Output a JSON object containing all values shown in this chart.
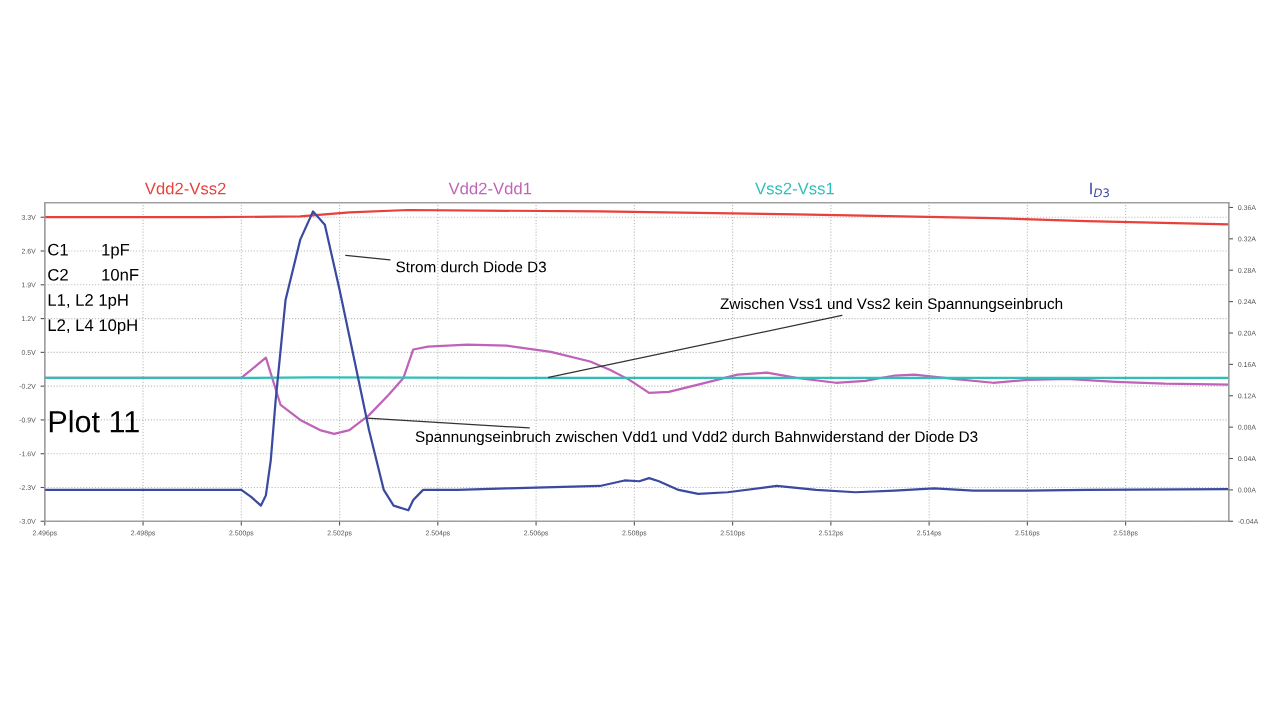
{
  "chart_data": {
    "type": "line",
    "xlim": [
      2.496,
      2.5201
    ],
    "xticks": [
      {
        "value": 2.496,
        "label": "2.496ps"
      },
      {
        "value": 2.498,
        "label": "2.498ps"
      },
      {
        "value": 2.5,
        "label": "2.500ps"
      },
      {
        "value": 2.502,
        "label": "2.502ps"
      },
      {
        "value": 2.504,
        "label": "2.504ps"
      },
      {
        "value": 2.506,
        "label": "2.506ps"
      },
      {
        "value": 2.508,
        "label": "2.508ps"
      },
      {
        "value": 2.51,
        "label": "2.510ps"
      },
      {
        "value": 2.512,
        "label": "2.512ps"
      },
      {
        "value": 2.514,
        "label": "2.514ps"
      },
      {
        "value": 2.516,
        "label": "2.516ps"
      },
      {
        "value": 2.518,
        "label": "2.518ps"
      }
    ],
    "ylim": [
      -3.0,
      3.6
    ],
    "yticks": [
      {
        "value": 3.3,
        "label": "3.3V"
      },
      {
        "value": 2.6,
        "label": "2.6V"
      },
      {
        "value": 1.9,
        "label": "1.9V"
      },
      {
        "value": 1.2,
        "label": "1.2V"
      },
      {
        "value": 0.5,
        "label": "0.5V"
      },
      {
        "value": -0.2,
        "label": "-0.2V"
      },
      {
        "value": -0.9,
        "label": "-0.9V"
      },
      {
        "value": -1.6,
        "label": "-1.6V"
      },
      {
        "value": -2.3,
        "label": "-2.3V"
      },
      {
        "value": -3.0,
        "label": "-3.0V"
      }
    ],
    "y2lim": [
      -0.04,
      0.366
    ],
    "y2ticks": [
      {
        "value": 0.36,
        "label": "0.36A"
      },
      {
        "value": 0.32,
        "label": "0.32A"
      },
      {
        "value": 0.28,
        "label": "0.28A"
      },
      {
        "value": 0.24,
        "label": "0.24A"
      },
      {
        "value": 0.2,
        "label": "0.20A"
      },
      {
        "value": 0.16,
        "label": "0.16A"
      },
      {
        "value": 0.12,
        "label": "0.12A"
      },
      {
        "value": 0.08,
        "label": "0.08A"
      },
      {
        "value": 0.04,
        "label": "0.04A"
      },
      {
        "value": 0.0,
        "label": "0.00A"
      },
      {
        "value": -0.04,
        "label": "-0.04A"
      }
    ],
    "grid": true,
    "line_style": "solid",
    "series": [
      {
        "name": "Vdd2-Vss2",
        "color": "#e8403a",
        "x": [
          2.496,
          2.4994,
          2.5012,
          2.5022,
          2.5034,
          2.5073,
          2.5113,
          2.5153,
          2.5172,
          2.5201
        ],
        "values": [
          3.3,
          3.3,
          3.32,
          3.4,
          3.45,
          3.42,
          3.36,
          3.28,
          3.22,
          3.15
        ]
      },
      {
        "name": "Vdd2-Vdd1",
        "color": "#c062b8",
        "x": [
          2.496,
          2.5,
          2.5005,
          2.5008,
          2.5012,
          2.5016,
          2.50189,
          2.5022,
          2.5026,
          2.503,
          2.5033,
          2.5035,
          2.5038,
          2.5046,
          2.5054,
          2.5063,
          2.5071,
          2.5075,
          2.5079,
          2.5083,
          2.5087,
          2.5093,
          2.5101,
          2.5107,
          2.5113,
          2.5121,
          2.5127,
          2.5133,
          2.5137,
          2.5145,
          2.5153,
          2.516,
          2.5168,
          2.5178,
          2.5188,
          2.5201
        ],
        "values": [
          -0.03,
          -0.03,
          0.39,
          -0.59,
          -0.9,
          -1.11,
          -1.19,
          -1.11,
          -0.8,
          -0.38,
          -0.03,
          0.56,
          0.62,
          0.66,
          0.64,
          0.51,
          0.31,
          0.14,
          -0.07,
          -0.34,
          -0.32,
          -0.17,
          0.04,
          0.08,
          -0.03,
          -0.13,
          -0.09,
          0.02,
          0.04,
          -0.05,
          -0.13,
          -0.07,
          -0.05,
          -0.11,
          -0.15,
          -0.17
        ]
      },
      {
        "name": "Vss2-Vss1",
        "color": "#2fbfb8",
        "x": [
          2.496,
          2.5,
          2.5015,
          2.506,
          2.51,
          2.515,
          2.5201
        ],
        "values": [
          -0.03,
          -0.03,
          -0.02,
          -0.03,
          -0.03,
          -0.03,
          -0.03
        ]
      },
      {
        "name": "I$_{D3}$",
        "color": "#3a4aa0",
        "axis": "y2",
        "x": [
          2.496,
          2.5,
          2.5002,
          2.5004,
          2.5005,
          2.5006,
          2.5007,
          2.5009,
          2.5012,
          2.50146,
          2.5017,
          2.502,
          2.5023,
          2.5026,
          2.5029,
          2.5031,
          2.5034,
          2.5035,
          2.5037,
          2.5044,
          2.5054,
          2.5073,
          2.5078,
          2.5081,
          2.5083,
          2.5085,
          2.5089,
          2.5093,
          2.5099,
          2.5109,
          2.5117,
          2.5125,
          2.5133,
          2.5141,
          2.5149,
          2.516,
          2.5172,
          2.5201
        ],
        "values": [
          0.0,
          0.0,
          -0.009,
          -0.02,
          -0.007,
          0.038,
          0.115,
          0.242,
          0.319,
          0.355,
          0.338,
          0.255,
          0.166,
          0.076,
          0.0,
          -0.02,
          -0.026,
          -0.013,
          0.0,
          0.0,
          0.002,
          0.005,
          0.012,
          0.011,
          0.015,
          0.011,
          0.0,
          -0.005,
          -0.003,
          0.005,
          0.0,
          -0.003,
          -0.001,
          0.002,
          -0.001,
          -0.001,
          0.0,
          0.001
        ]
      }
    ],
    "annotations": [
      "C1       1pF",
      "C2       10nF",
      "L1, L2 1pH",
      "L2, L4 10pH",
      "Plot 11",
      "Strom durch Diode D3",
      {
        "text": "Zwischen Vss1 und Vss2 kein Spannungseinbruch",
        "x": 2.5062,
        "y": -0.03
      },
      {
        "text": "Spannungseinbruch zwischen Vdd1 und Vdd2 durch Bahnwiderstand der Diode D3",
        "x": 2.5025,
        "y": -0.86
      }
    ]
  }
}
